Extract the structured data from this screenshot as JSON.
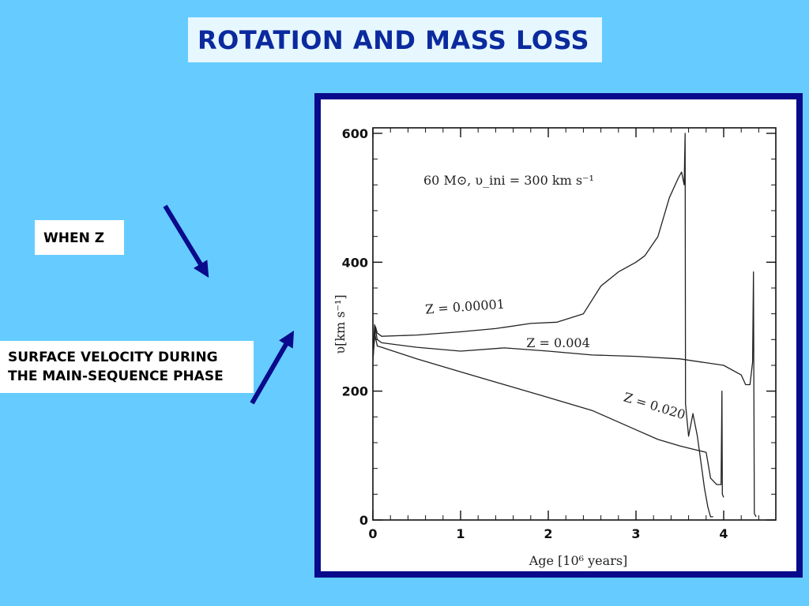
{
  "slide": {
    "title": "ROTATION AND MASS LOSS",
    "when_label": "WHEN Z",
    "surface_label_line1": "SURFACE VELOCITY DURING",
    "surface_label_line2": "THE MAIN-SEQUENCE PHASE",
    "colors": {
      "background": "#66ccff",
      "title_text": "#0b2a9e",
      "frame": "#0a0a8c",
      "arrow": "#0a0a8c"
    },
    "icons": [
      "arrow-down-right-icon",
      "arrow-up-right-icon"
    ]
  },
  "chart_data": {
    "type": "line",
    "xlabel": "Age [10⁶ years]",
    "ylabel": "υ[km s⁻¹]",
    "annotation": "60 M⊙, υ_ini = 300 km s⁻¹",
    "xlim": [
      0,
      4.6
    ],
    "ylim": [
      0,
      600
    ],
    "x_ticks": [
      0,
      1,
      2,
      3,
      4
    ],
    "y_ticks": [
      0,
      200,
      400,
      600
    ],
    "x_tick_labels": [
      "0",
      "1",
      "2",
      "3",
      "4"
    ],
    "y_tick_labels": [
      "0",
      "200",
      "400",
      "600"
    ],
    "grid": false,
    "series": [
      {
        "name": "Z = 0.00001",
        "points": [
          [
            0.0,
            250
          ],
          [
            0.03,
            300
          ],
          [
            0.05,
            290
          ],
          [
            0.1,
            285
          ],
          [
            0.5,
            287
          ],
          [
            1.0,
            292
          ],
          [
            1.4,
            297
          ],
          [
            1.8,
            305
          ],
          [
            2.1,
            307
          ],
          [
            2.4,
            320
          ],
          [
            2.6,
            363
          ],
          [
            2.8,
            385
          ],
          [
            3.0,
            400
          ],
          [
            3.1,
            410
          ],
          [
            3.25,
            440
          ],
          [
            3.38,
            500
          ],
          [
            3.48,
            530
          ],
          [
            3.52,
            540
          ],
          [
            3.55,
            520
          ],
          [
            3.56,
            600
          ],
          [
            3.565,
            180
          ],
          [
            3.6,
            130
          ],
          [
            3.65,
            165
          ],
          [
            3.7,
            130
          ],
          [
            3.75,
            80
          ],
          [
            3.78,
            50
          ],
          [
            3.82,
            20
          ],
          [
            3.85,
            5
          ],
          [
            3.88,
            5
          ]
        ]
      },
      {
        "name": "Z = 0.004",
        "points": [
          [
            0.0,
            255
          ],
          [
            0.02,
            303
          ],
          [
            0.05,
            280
          ],
          [
            0.1,
            275
          ],
          [
            0.5,
            268
          ],
          [
            1.0,
            262
          ],
          [
            1.5,
            267
          ],
          [
            2.0,
            262
          ],
          [
            2.5,
            256
          ],
          [
            3.0,
            254
          ],
          [
            3.5,
            250
          ],
          [
            4.0,
            240
          ],
          [
            4.2,
            225
          ],
          [
            4.25,
            210
          ],
          [
            4.3,
            210
          ],
          [
            4.33,
            245
          ],
          [
            4.34,
            385
          ],
          [
            4.35,
            10
          ],
          [
            4.37,
            5
          ]
        ]
      },
      {
        "name": "Z = 0.020",
        "points": [
          [
            0.0,
            245
          ],
          [
            0.02,
            290
          ],
          [
            0.05,
            270
          ],
          [
            0.1,
            268
          ],
          [
            0.5,
            250
          ],
          [
            1.0,
            230
          ],
          [
            1.5,
            210
          ],
          [
            2.0,
            190
          ],
          [
            2.5,
            170
          ],
          [
            3.0,
            140
          ],
          [
            3.25,
            125
          ],
          [
            3.5,
            115
          ],
          [
            3.65,
            110
          ],
          [
            3.8,
            105
          ],
          [
            3.85,
            65
          ],
          [
            3.92,
            55
          ],
          [
            3.97,
            55
          ],
          [
            3.98,
            200
          ],
          [
            3.985,
            40
          ],
          [
            4.0,
            35
          ]
        ]
      }
    ],
    "series_labels": [
      {
        "text": "Z = 0.00001",
        "x": 0.6,
        "y": 320,
        "rotate": -4
      },
      {
        "text": "Z = 0.004",
        "x": 1.75,
        "y": 268,
        "rotate": 0
      },
      {
        "text": "Z = 0.020",
        "x": 2.85,
        "y": 185,
        "rotate": 17
      }
    ]
  }
}
